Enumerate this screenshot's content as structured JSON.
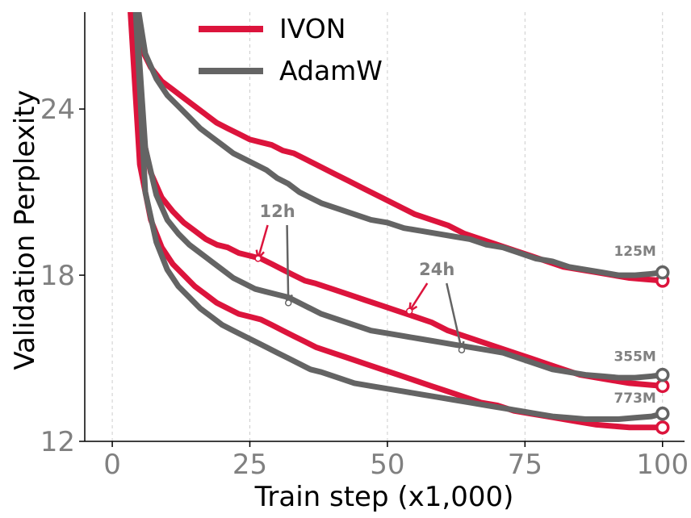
{
  "chart_data": {
    "type": "line",
    "title": "",
    "xlabel": "Train step (x1,000)",
    "ylabel": "Validation Perplexity",
    "xlim": [
      -5,
      104
    ],
    "ylim": [
      12,
      27.5
    ],
    "xticks": [
      0,
      25,
      50,
      75,
      100
    ],
    "xtick_labels": [
      "0",
      "25",
      "50",
      "75",
      "100"
    ],
    "yticks": [
      12,
      18,
      24
    ],
    "ytick_labels": [
      "12",
      "18",
      "24"
    ],
    "grid": "vertical dashed",
    "legend_position": "top-center",
    "colors": {
      "IVON": "#dc143c",
      "AdamW": "#646464"
    },
    "legend": [
      {
        "name": "IVON",
        "color": "#dc143c"
      },
      {
        "name": "AdamW",
        "color": "#646464"
      }
    ],
    "series": [
      {
        "name": "IVON",
        "model": "125M",
        "x": [
          3,
          5,
          7,
          9,
          11,
          13,
          15,
          17,
          19,
          21,
          23,
          25,
          27,
          29,
          31,
          33,
          35,
          37,
          40,
          43,
          46,
          49,
          52,
          55,
          58,
          61,
          64,
          67,
          70,
          73,
          76,
          79,
          82,
          85,
          88,
          91,
          94,
          97,
          100
        ],
        "y": [
          28.5,
          26.3,
          25.5,
          25.0,
          24.7,
          24.4,
          24.1,
          23.8,
          23.5,
          23.3,
          23.1,
          22.9,
          22.8,
          22.7,
          22.5,
          22.4,
          22.2,
          22.0,
          21.7,
          21.4,
          21.1,
          20.8,
          20.5,
          20.2,
          20.0,
          19.8,
          19.5,
          19.3,
          19.1,
          18.9,
          18.7,
          18.5,
          18.3,
          18.2,
          18.1,
          18.0,
          17.9,
          17.85,
          17.8
        ]
      },
      {
        "name": "AdamW",
        "model": "125M",
        "x": [
          4,
          6,
          8,
          10,
          12,
          14,
          16,
          18,
          20,
          22,
          24,
          26,
          28,
          30,
          32,
          34,
          36,
          38,
          41,
          44,
          47,
          50,
          53,
          56,
          59,
          62,
          65,
          68,
          71,
          74,
          77,
          80,
          83,
          86,
          89,
          92,
          95,
          98,
          100
        ],
        "y": [
          28.5,
          26.0,
          25.1,
          24.5,
          24.1,
          23.7,
          23.3,
          23.0,
          22.7,
          22.4,
          22.2,
          22.0,
          21.8,
          21.5,
          21.3,
          21.0,
          20.8,
          20.6,
          20.4,
          20.2,
          20.0,
          19.9,
          19.7,
          19.6,
          19.5,
          19.4,
          19.3,
          19.1,
          19.0,
          18.8,
          18.6,
          18.5,
          18.3,
          18.2,
          18.1,
          18.0,
          18.0,
          18.05,
          18.1
        ]
      },
      {
        "name": "IVON",
        "model": "355M",
        "x": [
          3,
          5,
          7,
          9,
          11,
          13,
          15,
          17,
          19,
          21,
          23,
          25,
          27,
          29,
          31,
          33,
          35,
          37,
          40,
          43,
          46,
          49,
          52,
          55,
          58,
          61,
          64,
          67,
          70,
          73,
          76,
          79,
          82,
          85,
          88,
          91,
          94,
          97,
          100
        ],
        "y": [
          28.5,
          23.5,
          21.7,
          20.8,
          20.3,
          19.9,
          19.6,
          19.3,
          19.1,
          19.0,
          18.8,
          18.7,
          18.6,
          18.4,
          18.2,
          18.0,
          17.8,
          17.7,
          17.5,
          17.3,
          17.1,
          16.9,
          16.7,
          16.5,
          16.3,
          16.0,
          15.8,
          15.6,
          15.4,
          15.2,
          15.0,
          14.8,
          14.6,
          14.4,
          14.3,
          14.2,
          14.1,
          14.05,
          14.0
        ]
      },
      {
        "name": "AdamW",
        "model": "355M",
        "x": [
          4,
          6,
          8,
          10,
          12,
          14,
          16,
          18,
          20,
          22,
          24,
          26,
          28,
          30,
          32,
          34,
          36,
          38,
          41,
          44,
          47,
          50,
          53,
          56,
          59,
          62,
          65,
          68,
          71,
          74,
          77,
          80,
          83,
          86,
          89,
          92,
          95,
          98,
          100
        ],
        "y": [
          28.5,
          22.6,
          20.9,
          20.0,
          19.5,
          19.1,
          18.8,
          18.5,
          18.2,
          17.9,
          17.7,
          17.5,
          17.4,
          17.3,
          17.2,
          17.0,
          16.8,
          16.6,
          16.4,
          16.2,
          16.0,
          15.9,
          15.8,
          15.7,
          15.6,
          15.5,
          15.4,
          15.3,
          15.2,
          15.0,
          14.8,
          14.6,
          14.5,
          14.4,
          14.35,
          14.3,
          14.3,
          14.35,
          14.4
        ]
      },
      {
        "name": "IVON",
        "model": "773M",
        "x": [
          3,
          5,
          7,
          9,
          11,
          13,
          15,
          17,
          19,
          21,
          23,
          25,
          27,
          29,
          31,
          33,
          35,
          37,
          40,
          43,
          46,
          49,
          52,
          55,
          58,
          61,
          64,
          67,
          70,
          73,
          76,
          79,
          82,
          85,
          88,
          91,
          94,
          97,
          100
        ],
        "y": [
          28.5,
          22.0,
          20.0,
          19.0,
          18.4,
          18.0,
          17.6,
          17.3,
          17.0,
          16.8,
          16.6,
          16.5,
          16.4,
          16.2,
          16.0,
          15.8,
          15.6,
          15.4,
          15.2,
          15.0,
          14.8,
          14.6,
          14.4,
          14.2,
          14.0,
          13.8,
          13.6,
          13.4,
          13.3,
          13.1,
          13.0,
          12.9,
          12.8,
          12.7,
          12.6,
          12.55,
          12.5,
          12.5,
          12.5
        ]
      },
      {
        "name": "AdamW",
        "model": "773M",
        "x": [
          4,
          6,
          8,
          10,
          12,
          14,
          16,
          18,
          20,
          22,
          24,
          26,
          28,
          30,
          32,
          34,
          36,
          38,
          41,
          44,
          47,
          50,
          53,
          56,
          59,
          62,
          65,
          68,
          71,
          74,
          77,
          80,
          83,
          86,
          89,
          92,
          95,
          98,
          100
        ],
        "y": [
          28.5,
          21.0,
          19.2,
          18.2,
          17.6,
          17.2,
          16.8,
          16.5,
          16.2,
          16.0,
          15.8,
          15.6,
          15.4,
          15.2,
          15.0,
          14.8,
          14.6,
          14.5,
          14.3,
          14.1,
          14.0,
          13.9,
          13.8,
          13.7,
          13.6,
          13.5,
          13.4,
          13.3,
          13.2,
          13.1,
          13.0,
          12.9,
          12.85,
          12.8,
          12.8,
          12.8,
          12.85,
          12.9,
          13.0
        ]
      }
    ],
    "end_markers": [
      {
        "model": "125M",
        "series": "IVON",
        "x": 100,
        "y": 17.8
      },
      {
        "model": "125M",
        "series": "AdamW",
        "x": 100,
        "y": 18.1
      },
      {
        "model": "355M",
        "series": "IVON",
        "x": 100,
        "y": 14.0
      },
      {
        "model": "355M",
        "series": "AdamW",
        "x": 100,
        "y": 14.4
      },
      {
        "model": "773M",
        "series": "IVON",
        "x": 100,
        "y": 12.5
      },
      {
        "model": "773M",
        "series": "AdamW",
        "x": 100,
        "y": 13.0
      }
    ],
    "model_labels": [
      {
        "text": "125M",
        "x": 95,
        "y": 18.7
      },
      {
        "text": "355M",
        "x": 95,
        "y": 14.9
      },
      {
        "text": "773M",
        "x": 95,
        "y": 13.4
      }
    ],
    "annotations": [
      {
        "text": "12h",
        "text_x": 30,
        "text_y": 20.1,
        "points": [
          {
            "series": "IVON",
            "x": 26.5,
            "y": 18.6
          },
          {
            "series": "AdamW",
            "x": 32,
            "y": 17.0
          }
        ]
      },
      {
        "text": "24h",
        "text_x": 59,
        "text_y": 18.0,
        "points": [
          {
            "series": "IVON",
            "x": 54,
            "y": 16.7
          },
          {
            "series": "AdamW",
            "x": 63.5,
            "y": 15.3
          }
        ]
      }
    ]
  }
}
